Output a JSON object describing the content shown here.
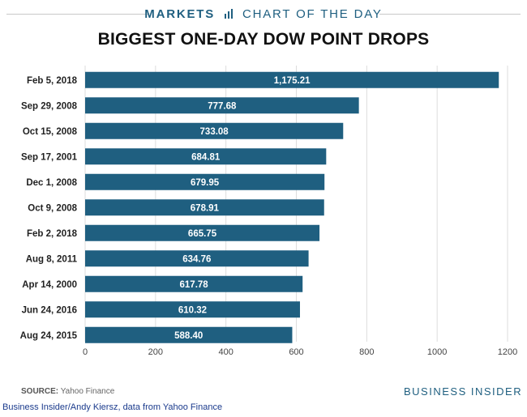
{
  "header": {
    "brand_markets": "MARKETS",
    "brand_cotd": "CHART OF THE DAY",
    "accent_color": "#1f5f80"
  },
  "chart_data": {
    "type": "bar",
    "orientation": "horizontal",
    "title": "BIGGEST ONE-DAY DOW POINT DROPS",
    "categories": [
      "Feb 5, 2018",
      "Sep 29, 2008",
      "Oct 15, 2008",
      "Sep 17, 2001",
      "Dec 1, 2008",
      "Oct 9, 2008",
      "Feb 2, 2018",
      "Aug 8, 2011",
      "Apr 14, 2000",
      "Jun 24, 2016",
      "Aug 24, 2015"
    ],
    "values": [
      1175.21,
      777.68,
      733.08,
      684.81,
      679.95,
      678.91,
      665.75,
      634.76,
      617.78,
      610.32,
      588.4
    ],
    "value_labels": [
      "1,175.21",
      "777.68",
      "733.08",
      "684.81",
      "679.95",
      "678.91",
      "665.75",
      "634.76",
      "617.78",
      "610.32",
      "588.40"
    ],
    "x_ticks": [
      0,
      200,
      400,
      600,
      800,
      1000,
      1200
    ],
    "xlim": [
      0,
      1200
    ],
    "grid": "vertical",
    "bar_color": "#1f5f80"
  },
  "footer": {
    "source_label": "SOURCE:",
    "source_text": "Yahoo Finance",
    "brand": "BUSINESS INSIDER"
  },
  "credit": "Business Insider/Andy Kiersz, data from Yahoo Finance"
}
